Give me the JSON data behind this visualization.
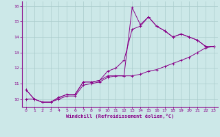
{
  "xlabel": "Windchill (Refroidissement éolien,°C)",
  "bg_color": "#cce8e8",
  "grid_color": "#aacccc",
  "line_color": "#880088",
  "axis_line_color": "#880088",
  "xlim": [
    -0.5,
    23.5
  ],
  "ylim": [
    9.5,
    16.3
  ],
  "xticks": [
    0,
    1,
    2,
    3,
    4,
    5,
    6,
    7,
    8,
    9,
    10,
    11,
    12,
    13,
    14,
    15,
    16,
    17,
    18,
    19,
    20,
    21,
    22,
    23
  ],
  "yticks": [
    10,
    11,
    12,
    13,
    14,
    15,
    16
  ],
  "series": [
    [
      0,
      1,
      2,
      3,
      4,
      5,
      6,
      7,
      8,
      9,
      10,
      11,
      12,
      13,
      14,
      15,
      16,
      17,
      18,
      19,
      20,
      21,
      22,
      23
    ],
    [
      10.6,
      10.0,
      9.8,
      9.8,
      10.1,
      10.3,
      10.3,
      11.1,
      11.1,
      11.2,
      11.5,
      11.5,
      11.5,
      15.9,
      14.8,
      15.3,
      14.7,
      14.4,
      14.0,
      14.2,
      14.0,
      13.8,
      13.4,
      13.4
    ],
    [
      10.6,
      10.0,
      9.8,
      9.8,
      10.1,
      10.3,
      10.3,
      11.1,
      11.1,
      11.2,
      11.8,
      12.0,
      12.5,
      14.5,
      14.7,
      15.3,
      14.7,
      14.4,
      14.0,
      14.2,
      14.0,
      13.8,
      13.4,
      13.4
    ],
    [
      10.0,
      10.0,
      9.8,
      9.8,
      10.0,
      10.2,
      10.2,
      10.9,
      11.0,
      11.1,
      11.4,
      11.5,
      11.5,
      11.5,
      11.6,
      11.8,
      11.9,
      12.1,
      12.3,
      12.5,
      12.7,
      13.0,
      13.3,
      13.4
    ]
  ]
}
